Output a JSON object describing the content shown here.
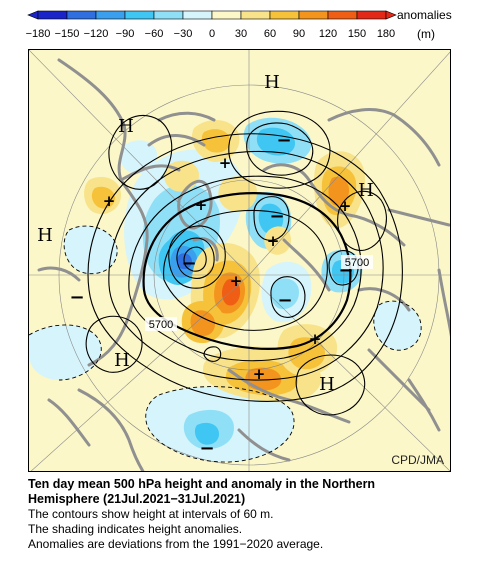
{
  "colorbar": {
    "ticks": [
      "−180",
      "−150",
      "−120",
      "−90",
      "−60",
      "−30",
      "0",
      "30",
      "60",
      "90",
      "120",
      "150",
      "180"
    ],
    "colors": [
      "#1a24c8",
      "#2f6fe0",
      "#3aa0ee",
      "#3fc6f2",
      "#8fe0f7",
      "#d6f4fb",
      "#fbf7c8",
      "#f8e38a",
      "#f6c23a",
      "#f3941e",
      "#ef5e14",
      "#e32818"
    ],
    "label": "anomalies",
    "unit": "(m)"
  },
  "map": {
    "highs": [
      "H",
      "H",
      "H",
      "H",
      "H",
      "H"
    ],
    "lows": [
      "−",
      "−",
      "−",
      "−",
      "−",
      "−",
      "−"
    ],
    "plus_marks": [
      "+",
      "+",
      "+",
      "+",
      "+",
      "+",
      "+",
      "+"
    ],
    "contour_labels": [
      "5700",
      "5700"
    ],
    "colors": {
      "background": "#fbf7c8",
      "positive_light": "#f8e38a",
      "positive_mid": "#f6c23a",
      "positive_strong": "#f3941e",
      "positive_max": "#ef5e14",
      "negative_light": "#d6f4fb",
      "negative_mid": "#8fe0f7",
      "negative_strong": "#3fc6f2",
      "negative_deep": "#3aa0ee",
      "negative_max": "#2f6fe0",
      "coastline": "#909090"
    }
  },
  "credit": "CPD/JMA",
  "caption": {
    "title_line1": "Ten day mean 500 hPa height and anomaly in the Northern",
    "title_line2": "Hemisphere (21Jul.2021−31Jul.2021)",
    "line1": "The contours show height at intervals of 60 m.",
    "line2": "The shading indicates height anomalies.",
    "line3": "Anomalies are deviations from the 1991−2020 average."
  }
}
